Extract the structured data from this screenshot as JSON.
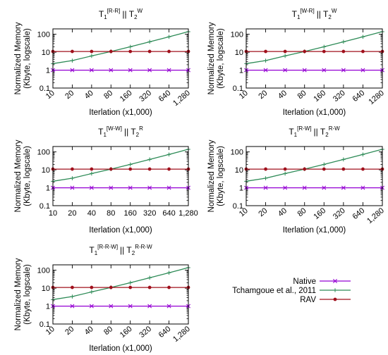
{
  "figure": {
    "legend": {
      "entries": [
        {
          "label": "Native",
          "color": "#9400d3",
          "marker": "x"
        },
        {
          "label": "Tchamgoue et al., 2011",
          "color": "#2e8b57",
          "marker": "plus"
        },
        {
          "label": "RAV",
          "color": "#a0101c",
          "marker": "dot"
        }
      ]
    }
  },
  "chart_data": [
    {
      "type": "line",
      "title": {
        "base": "T",
        "sub1": "1",
        "sup1": "[R-R]",
        "sep": "|| T",
        "sub2": "2",
        "sup2": "W"
      },
      "xlabel": "Iterlation (x1,000)",
      "ylabel": [
        "Normalized Memory",
        "(Kbyte, logscale)"
      ],
      "yscale": "log",
      "ylim": [
        0.1,
        200
      ],
      "yticks": [
        "0.1",
        "1",
        "10",
        "100"
      ],
      "x": [
        "10",
        "20",
        "40",
        "80",
        "160",
        "320",
        "640",
        "1,280"
      ],
      "series": [
        {
          "name": "Native",
          "values": [
            1,
            1,
            1,
            1,
            1,
            1,
            1,
            1
          ]
        },
        {
          "name": "Tchamgoue et al., 2011",
          "values": [
            2.3,
            3.4,
            6.2,
            11,
            20,
            38,
            72,
            140
          ]
        },
        {
          "name": "RAV",
          "values": [
            11,
            11,
            11,
            11,
            11,
            11,
            11,
            11
          ]
        }
      ]
    },
    {
      "type": "line",
      "title": {
        "base": "T",
        "sub1": "1",
        "sup1": "[W-R]",
        "sep": "|| T",
        "sub2": "2",
        "sup2": "W"
      },
      "xlabel": "Iterlation (x1,000)",
      "ylabel": [
        "Normalized Memory",
        "(Kbyte, logscale)"
      ],
      "yscale": "log",
      "ylim": [
        0.1,
        200
      ],
      "yticks": [
        "0.1",
        "1",
        "10",
        "100"
      ],
      "x": [
        "10",
        "20",
        "40",
        "80",
        "160",
        "320",
        "640",
        "1280"
      ],
      "series": [
        {
          "name": "Native",
          "values": [
            1,
            1,
            1,
            1,
            1,
            1,
            1,
            1
          ]
        },
        {
          "name": "Tchamgoue et al., 2011",
          "values": [
            2.3,
            3.4,
            6.2,
            11,
            20,
            38,
            72,
            140
          ]
        },
        {
          "name": "RAV",
          "values": [
            11,
            11,
            11,
            11,
            11,
            11,
            11,
            11
          ]
        }
      ]
    },
    {
      "type": "line",
      "title": {
        "base": "T",
        "sub1": "1",
        "sup1": "[W-W]",
        "sep": "|| T",
        "sub2": "2",
        "sup2": "R"
      },
      "xlabel": "Iterlation (x1,000)",
      "ylabel": [
        "Normalized Memory",
        "(Kbyte, logscale)"
      ],
      "yscale": "log",
      "ylim": [
        0.1,
        200
      ],
      "yticks": [
        "0.1",
        "1",
        "10",
        "100"
      ],
      "x": [
        "10",
        "20",
        "40",
        "80",
        "160",
        "320",
        "640",
        "1,280"
      ],
      "series": [
        {
          "name": "Native",
          "values": [
            1,
            1,
            1,
            1,
            1,
            1,
            1,
            1
          ]
        },
        {
          "name": "Tchamgoue et al., 2011",
          "values": [
            2.3,
            3.4,
            6.2,
            11,
            20,
            38,
            72,
            140
          ]
        },
        {
          "name": "RAV",
          "values": [
            11,
            11,
            11,
            11,
            11,
            11,
            11,
            11
          ]
        }
      ]
    },
    {
      "type": "line",
      "title": {
        "base": "T",
        "sub1": "1",
        "sup1": "[R-W]",
        "sep": "|| T",
        "sub2": "2",
        "sup2": "R-W"
      },
      "xlabel": "Iterlation (x1,000)",
      "ylabel": [
        "Normalized Memory",
        "(Kbyte, logscale)"
      ],
      "yscale": "log",
      "ylim": [
        0.1,
        200
      ],
      "yticks": [
        "0.1",
        "1",
        "10",
        "100"
      ],
      "x": [
        "10",
        "20",
        "40",
        "80",
        "160",
        "320",
        "640",
        "1,280"
      ],
      "series": [
        {
          "name": "Native",
          "values": [
            1,
            1,
            1,
            1,
            1,
            1,
            1,
            1
          ]
        },
        {
          "name": "Tchamgoue et al., 2011",
          "values": [
            2.3,
            3.4,
            6.2,
            11,
            20,
            38,
            72,
            140
          ]
        },
        {
          "name": "RAV",
          "values": [
            11,
            11,
            11,
            11,
            11,
            11,
            11,
            11
          ]
        }
      ]
    },
    {
      "type": "line",
      "title": {
        "base": "T",
        "sub1": "1",
        "sup1": "[R-R-W]",
        "sep": "|| T",
        "sub2": "2",
        "sup2": "R-R-W"
      },
      "xlabel": "Iterlation (x1,000)",
      "ylabel": [
        "Normalized Memory",
        "(Kbyte, logscale)"
      ],
      "yscale": "log",
      "ylim": [
        0.1,
        200
      ],
      "yticks": [
        "0.1",
        "1",
        "10",
        "100"
      ],
      "x": [
        "10",
        "20",
        "40",
        "80",
        "160",
        "320",
        "640",
        "1,280"
      ],
      "series": [
        {
          "name": "Native",
          "values": [
            1,
            1,
            1,
            1,
            1,
            1,
            1,
            1
          ]
        },
        {
          "name": "Tchamgoue et al., 2011",
          "values": [
            2.3,
            3.4,
            6.2,
            11,
            20,
            38,
            72,
            140
          ]
        },
        {
          "name": "RAV",
          "values": [
            11,
            11,
            11,
            11,
            11,
            11,
            11,
            11
          ]
        }
      ]
    }
  ]
}
